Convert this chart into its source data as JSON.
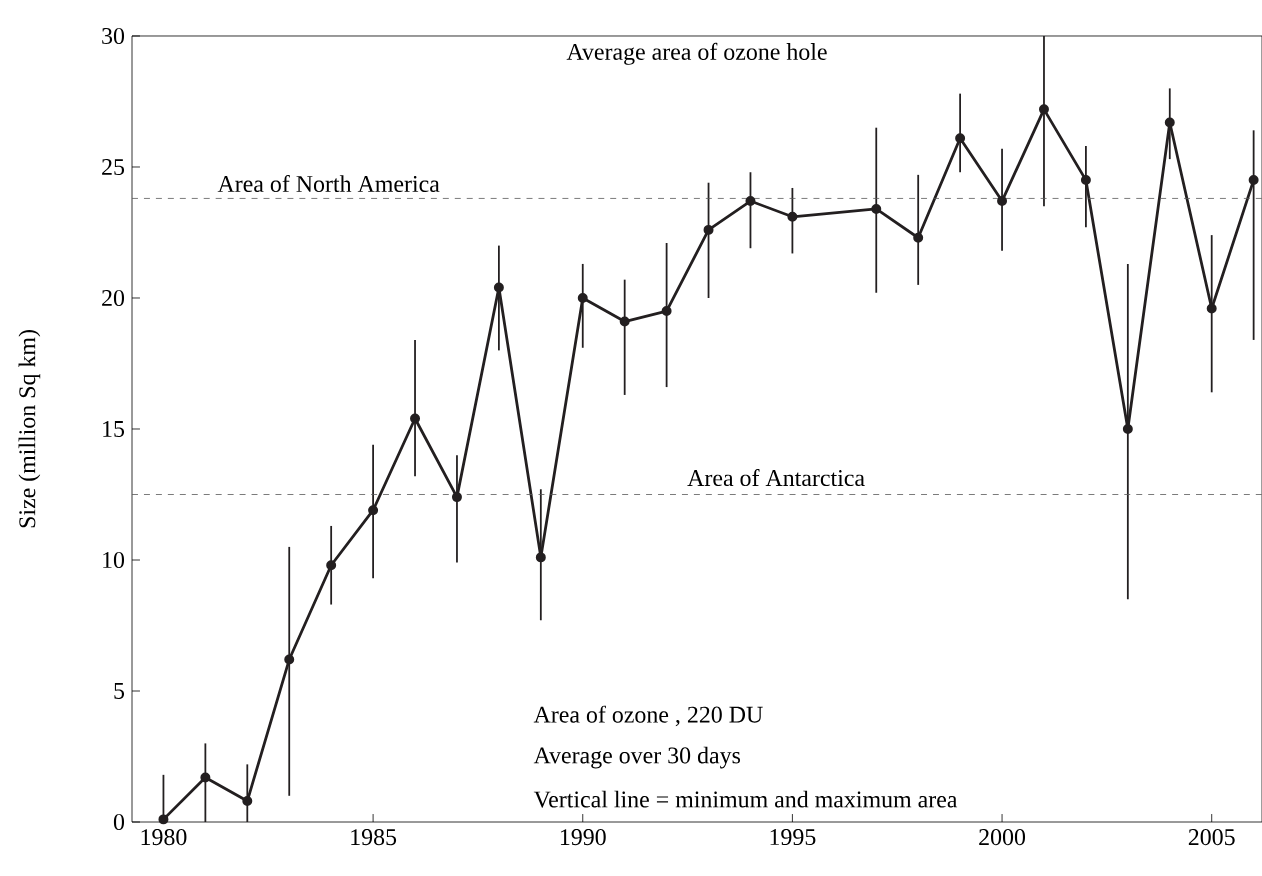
{
  "chart_data": {
    "type": "line",
    "title": "Average area of ozone hole",
    "ylabel": "Size (million Sq km)",
    "x": [
      1980,
      1981,
      1982,
      1983,
      1984,
      1985,
      1986,
      1987,
      1988,
      1989,
      1990,
      1991,
      1992,
      1993,
      1994,
      1995,
      1997,
      1998,
      1999,
      2000,
      2001,
      2002,
      2003,
      2004,
      2005,
      2006
    ],
    "series": [
      {
        "color": "#231f20",
        "values": [
          0.1,
          1.7,
          0.8,
          6.2,
          9.8,
          11.9,
          15.4,
          12.4,
          20.4,
          10.1,
          20.0,
          19.1,
          19.5,
          22.6,
          23.7,
          23.1,
          23.4,
          22.3,
          26.1,
          23.7,
          27.2,
          24.5,
          15.0,
          26.7,
          19.6,
          24.5
        ],
        "errors": [
          [
            0,
            1.8
          ],
          [
            0,
            3.0
          ],
          [
            0,
            2.2
          ],
          [
            1.0,
            10.5
          ],
          [
            8.3,
            11.3
          ],
          [
            9.3,
            14.4
          ],
          [
            13.2,
            18.4
          ],
          [
            9.9,
            14.0
          ],
          [
            18.0,
            22.0
          ],
          [
            7.7,
            12.7
          ],
          [
            18.1,
            21.3
          ],
          [
            16.3,
            20.7
          ],
          [
            16.6,
            22.1
          ],
          [
            20.0,
            24.4
          ],
          [
            21.9,
            24.8
          ],
          [
            21.7,
            24.2
          ],
          [
            20.2,
            26.5
          ],
          [
            20.5,
            24.7
          ],
          [
            24.8,
            27.8
          ],
          [
            21.8,
            25.7
          ],
          [
            23.5,
            30
          ],
          [
            22.7,
            25.8
          ],
          [
            8.5,
            21.3
          ],
          [
            25.3,
            28.0
          ],
          [
            16.4,
            22.4
          ],
          [
            18.4,
            26.4
          ]
        ]
      }
    ],
    "marker": "circle",
    "line_style": "solid",
    "xlim": [
      1979.25,
      2006.2
    ],
    "xticks": [
      1980,
      1985,
      1990,
      1995,
      2000,
      2005
    ],
    "ylim": [
      0,
      30
    ],
    "yticks": [
      0,
      5,
      10,
      15,
      20,
      25,
      30
    ],
    "ref_lines": [
      {
        "axis": "y",
        "value": 23.8,
        "label": "Area of North America",
        "line_style": "dashed"
      },
      {
        "axis": "y",
        "value": 12.5,
        "label": "Area of Antarctica",
        "line_style": "dashed"
      }
    ],
    "annotations": [
      "Area of ozone , 220 DU",
      "Average over 30 days",
      "Vertical line = minimum and maximum area"
    ],
    "grid": false
  }
}
